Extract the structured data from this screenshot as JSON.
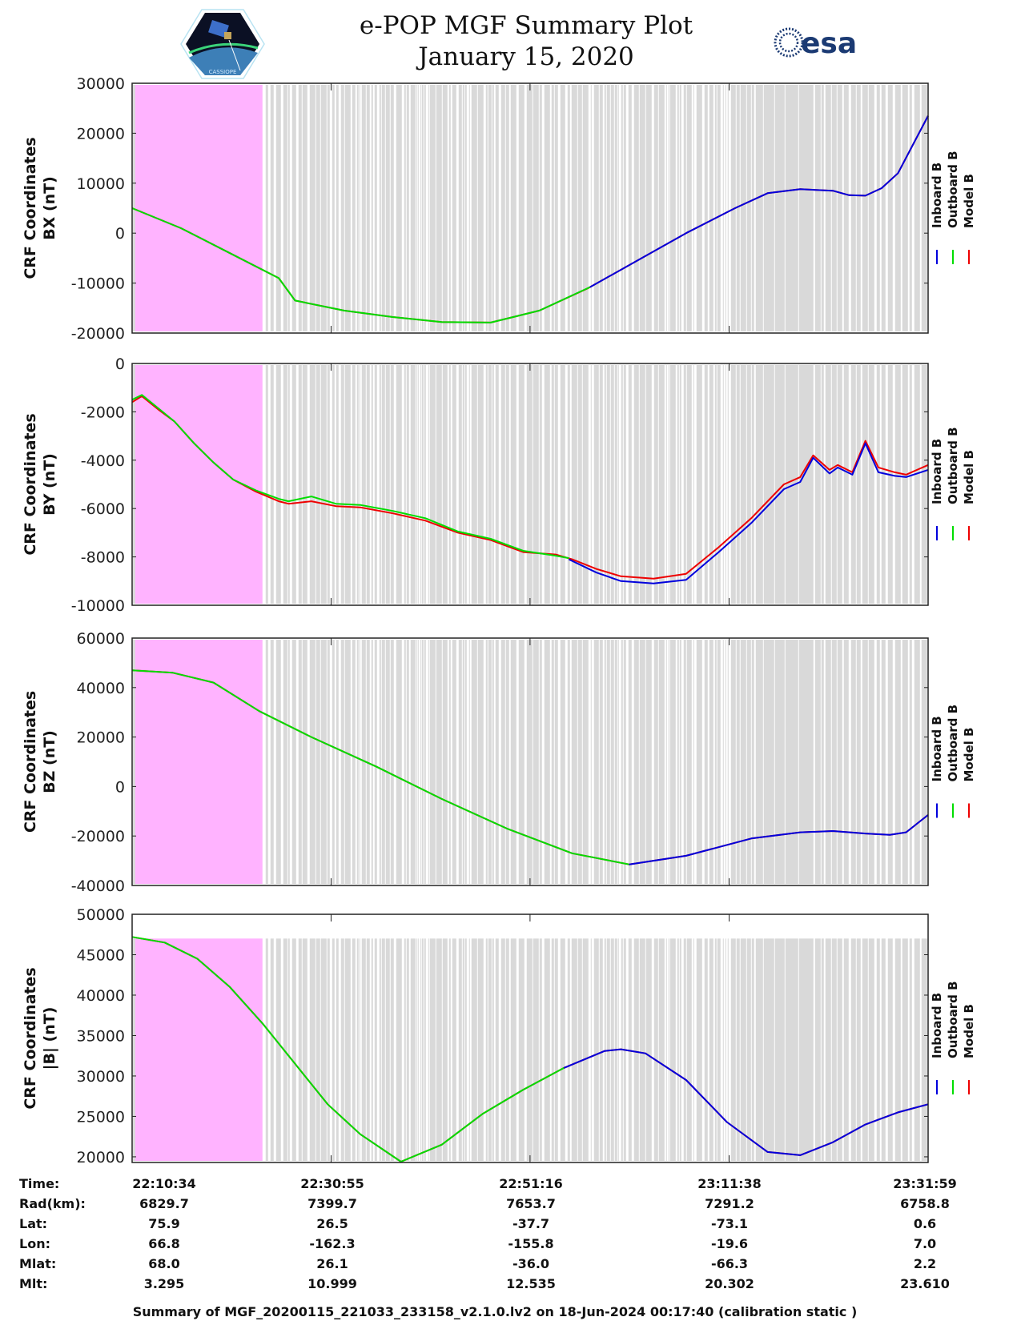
{
  "header": {
    "title": "e-POP MGF Summary Plot",
    "date": "January 15, 2020",
    "left_logo": "cassiope-mission-logo",
    "left_logo_caption": "CASSIOPE",
    "right_logo": "esa-logo",
    "right_logo_text": "esa"
  },
  "colors": {
    "inboard": "#0000dd",
    "outboard": "#00dd00",
    "model": "#ee0000",
    "pink_region": "#ffb3ff",
    "gray_band": "#d9d9d9"
  },
  "legend": [
    {
      "label": "Inboard B",
      "color": "#0000dd"
    },
    {
      "label": "Outboard B",
      "color": "#00dd00"
    },
    {
      "label": "Model B",
      "color": "#ee0000"
    }
  ],
  "chart_data": [
    {
      "type": "line",
      "title": "",
      "ylabel_line1": "CRF Coordinates",
      "ylabel_line2": "BX (nT)",
      "xlabel": "Time",
      "ylim": [
        -20000,
        30000
      ],
      "yticks": [
        30000,
        20000,
        10000,
        0,
        -10000,
        -20000
      ],
      "ytick_labels": [
        "30000",
        "20000",
        "10000",
        "0",
        "-10000",
        "-20000"
      ],
      "x_unit": "seconds since 22:10:34",
      "shading_top": 30000,
      "green_until": 2810,
      "series": [
        {
          "name": "Model B",
          "x": [
            0,
            300,
            600,
            900,
            1000,
            1300,
            1600,
            1900,
            2200,
            2500,
            2800,
            3100,
            3400,
            3700,
            3900,
            4100,
            4300,
            4400,
            4500,
            4600,
            4700,
            4885
          ],
          "y": [
            5000,
            1000,
            -4000,
            -9000,
            -13500,
            -15500,
            -16800,
            -17800,
            -17900,
            -15500,
            -11000,
            -5500,
            0,
            5000,
            8000,
            8800,
            8500,
            7600,
            7500,
            9000,
            12000,
            23500
          ]
        },
        {
          "name": "Outboard B",
          "x": [
            0,
            300,
            600,
            900,
            1000,
            1300,
            1600,
            1900,
            2200,
            2500,
            2810
          ],
          "y": [
            5000,
            1000,
            -4000,
            -9000,
            -13500,
            -15500,
            -16800,
            -17800,
            -17900,
            -15500,
            -10800
          ]
        },
        {
          "name": "Inboard B",
          "x": [
            2810,
            3100,
            3400,
            3700,
            3900,
            4100,
            4300,
            4400,
            4500,
            4600,
            4700,
            4885
          ],
          "y": [
            -10800,
            -5500,
            0,
            5000,
            8000,
            8800,
            8500,
            7600,
            7500,
            9000,
            12000,
            23500
          ]
        }
      ]
    },
    {
      "type": "line",
      "title": "",
      "ylabel_line1": "CRF Coordinates",
      "ylabel_line2": "BY (nT)",
      "xlabel": "Time",
      "ylim": [
        -10000,
        0
      ],
      "yticks": [
        0,
        -2000,
        -4000,
        -6000,
        -8000,
        -10000
      ],
      "ytick_labels": [
        "0",
        "-2000",
        "-4000",
        "-6000",
        "-8000",
        "-10000"
      ],
      "shading_top": 0,
      "green_until": 2680,
      "series": [
        {
          "name": "Model B",
          "x": [
            0,
            60,
            160,
            260,
            380,
            500,
            620,
            760,
            900,
            960,
            1100,
            1250,
            1400,
            1600,
            1800,
            2000,
            2200,
            2400,
            2600,
            2700,
            2850,
            3000,
            3200,
            3400,
            3600,
            3800,
            4000,
            4100,
            4180,
            4280,
            4330,
            4420,
            4500,
            4580,
            4680,
            4750,
            4885
          ],
          "y": [
            -1600,
            -1350,
            -1900,
            -2400,
            -3300,
            -4100,
            -4800,
            -5300,
            -5700,
            -5800,
            -5700,
            -5900,
            -5950,
            -6200,
            -6500,
            -7000,
            -7300,
            -7800,
            -7900,
            -8100,
            -8500,
            -8800,
            -8900,
            -8700,
            -7600,
            -6400,
            -5000,
            -4700,
            -3800,
            -4400,
            -4200,
            -4500,
            -3200,
            -4300,
            -4500,
            -4600,
            -4200
          ]
        },
        {
          "name": "Outboard B",
          "x": [
            0,
            60,
            160,
            260,
            380,
            500,
            620,
            760,
            900,
            960,
            1100,
            1250,
            1400,
            1600,
            1800,
            2000,
            2200,
            2400,
            2600,
            2680
          ],
          "y": [
            -1500,
            -1300,
            -1850,
            -2400,
            -3300,
            -4100,
            -4800,
            -5250,
            -5600,
            -5700,
            -5500,
            -5800,
            -5850,
            -6100,
            -6400,
            -6950,
            -7250,
            -7750,
            -7950,
            -8050
          ]
        },
        {
          "name": "Inboard B",
          "x": [
            2680,
            2850,
            3000,
            3200,
            3400,
            3600,
            3800,
            4000,
            4100,
            4180,
            4280,
            4330,
            4420,
            4500,
            4580,
            4680,
            4750,
            4885
          ],
          "y": [
            -8100,
            -8650,
            -9000,
            -9100,
            -8950,
            -7800,
            -6600,
            -5200,
            -4900,
            -3900,
            -4550,
            -4300,
            -4600,
            -3300,
            -4500,
            -4650,
            -4700,
            -4400
          ]
        }
      ]
    },
    {
      "type": "line",
      "title": "",
      "ylabel_line1": "CRF Coordinates",
      "ylabel_line2": "BZ (nT)",
      "xlabel": "Time",
      "ylim": [
        -40000,
        60000
      ],
      "yticks": [
        60000,
        40000,
        20000,
        0,
        -20000,
        -40000
      ],
      "ytick_labels": [
        "60000",
        "40000",
        "20000",
        "0",
        "-20000",
        "-40000"
      ],
      "shading_top": 60000,
      "green_until": 3050,
      "series": [
        {
          "name": "Model B",
          "x": [
            0,
            250,
            500,
            780,
            1100,
            1500,
            1900,
            2300,
            2700,
            3050,
            3400,
            3800,
            4100,
            4300,
            4500,
            4650,
            4750,
            4885
          ],
          "y": [
            47000,
            46000,
            42000,
            30500,
            20000,
            8000,
            -5000,
            -17000,
            -27000,
            -31500,
            -28000,
            -21000,
            -18500,
            -18000,
            -19000,
            -19500,
            -18500,
            -11500
          ]
        },
        {
          "name": "Outboard B",
          "x": [
            0,
            250,
            500,
            780,
            1100,
            1500,
            1900,
            2300,
            2700,
            3050
          ],
          "y": [
            47000,
            46000,
            42000,
            30500,
            20000,
            8000,
            -5000,
            -17000,
            -27000,
            -31500
          ]
        },
        {
          "name": "Inboard B",
          "x": [
            3050,
            3400,
            3800,
            4100,
            4300,
            4500,
            4650,
            4750,
            4885
          ],
          "y": [
            -31500,
            -28000,
            -21000,
            -18500,
            -18000,
            -19000,
            -19500,
            -18500,
            -11500
          ]
        }
      ]
    },
    {
      "type": "line",
      "title": "",
      "ylabel_line1": "CRF Coordinates",
      "ylabel_line2": "|B| (nT)",
      "xlabel": "Time",
      "ylim": [
        19300,
        50000
      ],
      "yticks": [
        50000,
        45000,
        40000,
        35000,
        30000,
        25000,
        20000
      ],
      "ytick_labels": [
        "50000",
        "45000",
        "40000",
        "35000",
        "30000",
        "25000",
        "20000"
      ],
      "shading_top": 47000,
      "green_until": 2650,
      "series": [
        {
          "name": "Model B",
          "x": [
            0,
            200,
            400,
            600,
            800,
            1000,
            1200,
            1400,
            1650,
            1900,
            2150,
            2400,
            2650,
            2900,
            3000,
            3150,
            3400,
            3650,
            3900,
            4100,
            4300,
            4500,
            4700,
            4885
          ],
          "y": [
            47200,
            46500,
            44500,
            41000,
            36500,
            31500,
            26500,
            22800,
            19400,
            21500,
            25300,
            28300,
            31000,
            33100,
            33300,
            32800,
            29500,
            24300,
            20600,
            20200,
            21800,
            24000,
            25500,
            26500
          ]
        },
        {
          "name": "Outboard B",
          "x": [
            0,
            200,
            400,
            600,
            800,
            1000,
            1200,
            1400,
            1650,
            1900,
            2150,
            2400,
            2650
          ],
          "y": [
            47200,
            46500,
            44500,
            41000,
            36500,
            31500,
            26500,
            22800,
            19400,
            21500,
            25300,
            28300,
            31000
          ]
        },
        {
          "name": "Inboard B",
          "x": [
            2650,
            2900,
            3000,
            3150,
            3400,
            3650,
            3900,
            4100,
            4300,
            4500,
            4700,
            4885
          ],
          "y": [
            31000,
            33100,
            33300,
            32800,
            29500,
            24300,
            20600,
            20200,
            21800,
            24000,
            25500,
            26500
          ]
        }
      ]
    }
  ],
  "x_axis": {
    "start": "22:10:34",
    "end": "23:31:59",
    "duration_seconds": 4885,
    "tick_seconds": [
      0,
      1221,
      2442,
      3664,
      4885
    ],
    "pink_region_seconds": [
      0,
      800
    ]
  },
  "ephemeris": {
    "row_labels": [
      "Time:",
      "Rad(km):",
      "Lat:",
      "Lon:",
      "Mlat:",
      "Mlt:"
    ],
    "columns": [
      [
        "22:10:34",
        "6829.7",
        "75.9",
        "66.8",
        "68.0",
        "3.295"
      ],
      [
        "22:30:55",
        "7399.7",
        "26.5",
        "-162.3",
        "26.1",
        "10.999"
      ],
      [
        "22:51:16",
        "7653.7",
        "-37.7",
        "-155.8",
        "-36.0",
        "12.535"
      ],
      [
        "23:11:38",
        "7291.2",
        "-73.1",
        "-19.6",
        "-66.3",
        "20.302"
      ],
      [
        "23:31:59",
        "6758.8",
        "0.6",
        "7.0",
        "2.2",
        "23.610"
      ]
    ]
  },
  "footer": "Summary of MGF_20200115_221033_233158_v2.1.0.lv2 on 18-Jun-2024 00:17:40 (calibration static )"
}
